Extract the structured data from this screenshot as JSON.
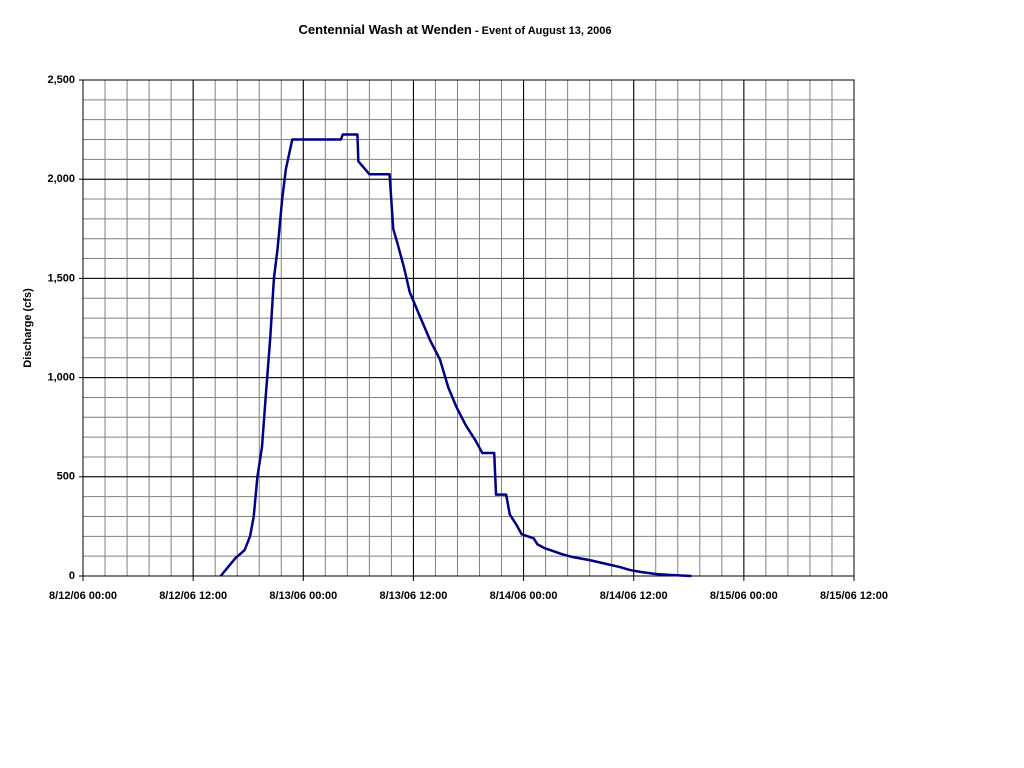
{
  "chart_data": {
    "type": "line",
    "title": "Centennial Wash at Wenden",
    "subtitle": "- Event of August 13, 2006",
    "y_label": "Discharge (cfs)",
    "color": "#000080",
    "grid": true,
    "minor_grid": {
      "x": 2.4,
      "y": 100
    },
    "xlim": [
      0,
      84
    ],
    "xticks": [
      {
        "value": 0,
        "label": "8/12/06 00:00"
      },
      {
        "value": 12,
        "label": "8/12/06 12:00"
      },
      {
        "value": 24,
        "label": "8/13/06 00:00"
      },
      {
        "value": 36,
        "label": "8/13/06 12:00"
      },
      {
        "value": 48,
        "label": "8/14/06 00:00"
      },
      {
        "value": 60,
        "label": "8/14/06 12:00"
      },
      {
        "value": 72,
        "label": "8/15/06 00:00"
      },
      {
        "value": 84,
        "label": "8/15/06 12:00"
      }
    ],
    "ylim": [
      0,
      2500
    ],
    "yticks": [
      0,
      500,
      {
        "value": 1000,
        "label": "1,000"
      },
      {
        "value": 1500,
        "label": "1,500"
      },
      {
        "value": 2000,
        "label": "2,000"
      },
      {
        "value": 2500,
        "label": "2,500"
      }
    ],
    "x": [
      15.0,
      16.6,
      17.6,
      18.2,
      18.6,
      19.0,
      19.5,
      19.9,
      20.4,
      20.8,
      21.2,
      21.7,
      22.1,
      22.8,
      28.1,
      28.3,
      29.9,
      30.0,
      31.2,
      33.4,
      33.8,
      34.3,
      35.0,
      35.6,
      36.6,
      37.8,
      38.9,
      39.8,
      40.7,
      41.7,
      42.8,
      43.5,
      44.8,
      45.0,
      46.1,
      46.5,
      47.2,
      47.8,
      49.1,
      49.5,
      50.3,
      52.2,
      53.4,
      55.2,
      57.1,
      58.5,
      59.6,
      60.8,
      62.4,
      64.0,
      66.3
    ],
    "values": [
      0,
      90,
      130,
      200,
      300,
      500,
      650,
      900,
      1200,
      1500,
      1650,
      1900,
      2050,
      2200,
      2200,
      2225,
      2225,
      2090,
      2025,
      2025,
      1750,
      1670,
      1550,
      1430,
      1320,
      1190,
      1090,
      950,
      850,
      760,
      680,
      620,
      620,
      410,
      410,
      310,
      260,
      210,
      190,
      160,
      140,
      110,
      95,
      80,
      60,
      45,
      30,
      20,
      10,
      5,
      0
    ]
  }
}
